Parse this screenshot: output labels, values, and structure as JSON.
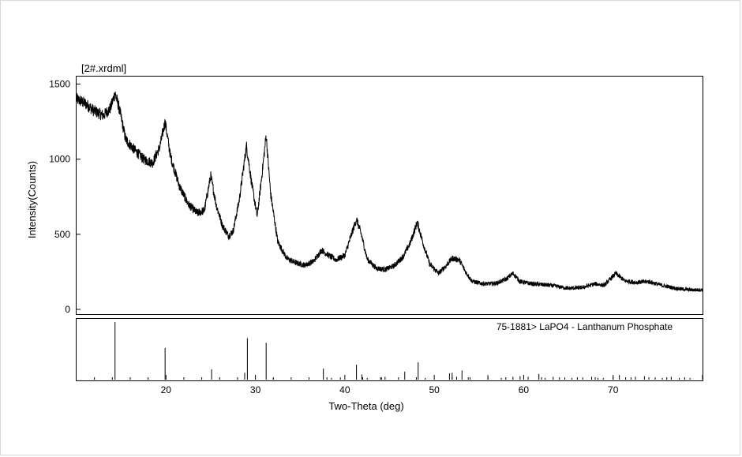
{
  "chart_data": {
    "type": "line",
    "title": "[2#.xrdml]",
    "xlabel": "Two-Theta (deg)",
    "ylabel": "Intensity(Counts)",
    "xlim": [
      10,
      80
    ],
    "ylim": [
      0,
      1550
    ],
    "x_ticks": [
      20,
      30,
      40,
      50,
      60,
      70
    ],
    "y_ticks": [
      0,
      500,
      1000,
      1500
    ],
    "grid": false,
    "series": [
      {
        "x": [
          10,
          11,
          12,
          13,
          13.8,
          14.3,
          14.8,
          15.5,
          16.5,
          17.5,
          18.5,
          19.3,
          19.9,
          20.5,
          21.5,
          22.5,
          23.5,
          24.3,
          25.0,
          25.6,
          26.3,
          27.0,
          27.5,
          28.2,
          29.0,
          29.6,
          30.2,
          30.7,
          31.2,
          31.7,
          32.5,
          33.5,
          34.5,
          35.5,
          36.5,
          37.4,
          38.2,
          39.0,
          40.0,
          40.8,
          41.3,
          41.8,
          42.5,
          43.5,
          44.5,
          45.5,
          46.5,
          47.3,
          48.1,
          48.8,
          49.5,
          50.5,
          51.3,
          52.0,
          52.8,
          53.5,
          54.2,
          55.0,
          56.0,
          57.0,
          58.0,
          58.8,
          59.6,
          61.0,
          63.0,
          65.0,
          66.5,
          68.0,
          69.0,
          70.3,
          71.3,
          72.5,
          74.0,
          75.5,
          77.0,
          78.5,
          80
        ],
        "y": [
          1400,
          1370,
          1320,
          1290,
          1340,
          1440,
          1330,
          1130,
          1060,
          1000,
          975,
          1080,
          1250,
          1020,
          820,
          700,
          640,
          660,
          890,
          700,
          560,
          490,
          520,
          730,
          1090,
          830,
          620,
          880,
          1160,
          770,
          450,
          340,
          310,
          295,
          320,
          395,
          360,
          330,
          360,
          510,
          600,
          510,
          335,
          275,
          265,
          290,
          350,
          440,
          580,
          430,
          300,
          240,
          290,
          340,
          330,
          250,
          190,
          175,
          170,
          175,
          200,
          240,
          185,
          170,
          160,
          140,
          145,
          170,
          160,
          240,
          190,
          180,
          185,
          160,
          140,
          130,
          130
        ]
      }
    ],
    "reference": {
      "label": "75-1881> LaPO4 - Lanthanum Phosphate",
      "peaks_x": [
        14.3,
        19.9,
        25.1,
        28.8,
        29.1,
        31.2,
        32.0,
        37.6,
        38.5,
        39.5,
        41.3,
        41.9,
        42.5,
        44.1,
        44.5,
        46.7,
        48.2,
        49.0,
        51.7,
        52.0,
        52.5,
        53.1,
        53.8,
        56.0,
        57.5,
        58.8,
        59.6,
        60.5,
        61.7,
        62.4,
        63.3,
        64.6,
        65.4,
        66.6,
        67.6,
        68.3,
        68.9,
        70.0,
        70.7,
        71.4,
        72.5,
        73.5,
        74.7,
        75.5,
        76.5,
        77.4,
        78.6
      ],
      "peaks_i": [
        100,
        55,
        18,
        12,
        72,
        64,
        3,
        19,
        3,
        4,
        26,
        9,
        3,
        4,
        5,
        14,
        30,
        3,
        11,
        12,
        5,
        16,
        4,
        8,
        3,
        5,
        6,
        5,
        10,
        3,
        5,
        4,
        3,
        4,
        5,
        3,
        3,
        4,
        8,
        4,
        5,
        6,
        4,
        3,
        5,
        3,
        3
      ]
    }
  }
}
